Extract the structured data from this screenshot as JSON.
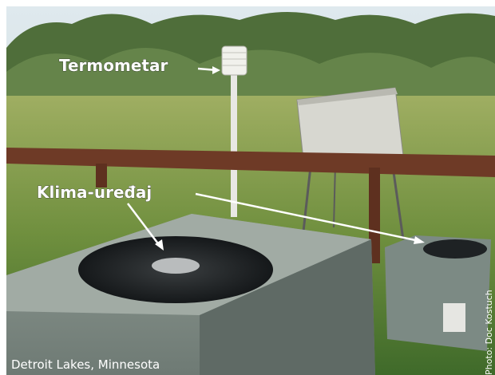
{
  "labels": {
    "thermometer": "Termometar",
    "air_conditioner": "Klima-uređaj"
  },
  "caption": "Detroit Lakes, Minnesota",
  "credit": "Photo: Doc Kostuch"
}
